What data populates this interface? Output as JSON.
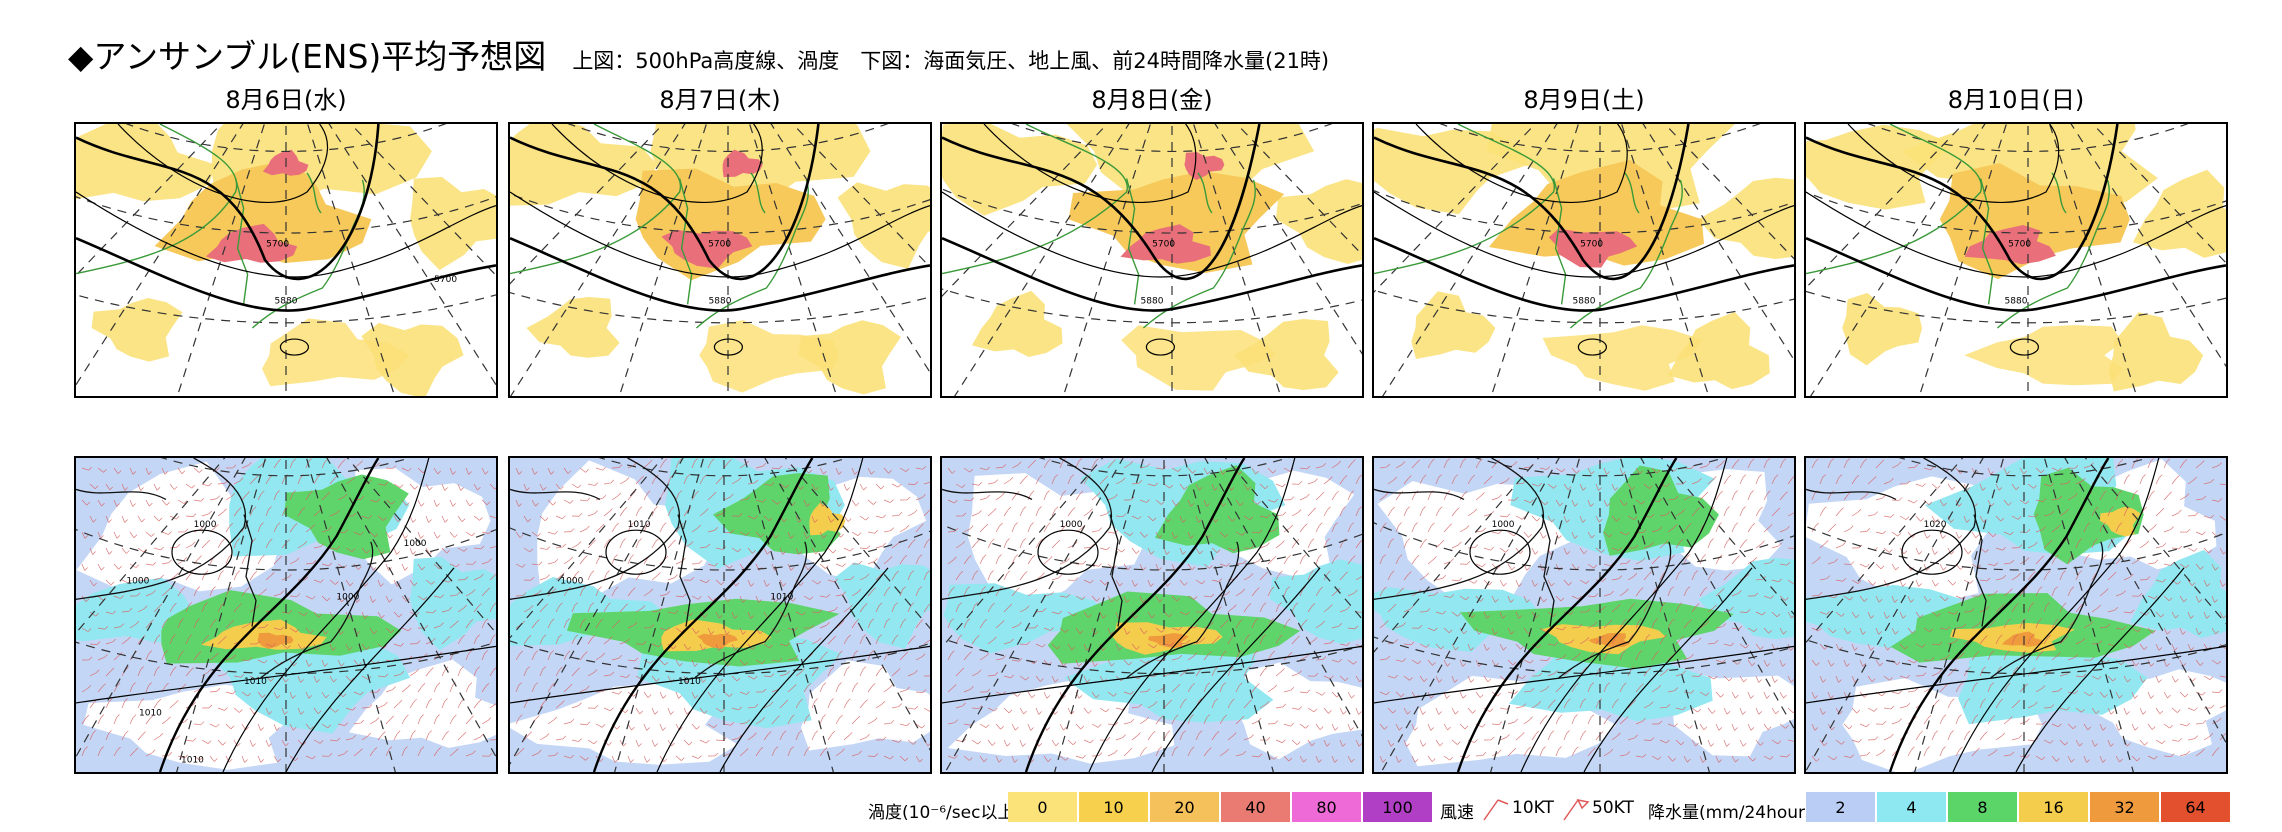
{
  "header": {
    "title": "◆アンサンブル(ENS)平均予想図",
    "subtitle": "上図：500hPa高度線、渦度　下図：海面気圧、地上風、前24時間降水量(21時)"
  },
  "panels": [
    {
      "date": "8月6日(水)",
      "top_contours": [
        "5700",
        "5880",
        "5700"
      ],
      "bottom_contours": [
        "1000",
        "1000",
        "1000",
        "1010",
        "1010",
        "1010",
        "1000"
      ]
    },
    {
      "date": "8月7日(木)",
      "top_contours": [
        "5700",
        "5880"
      ],
      "bottom_contours": [
        "1010",
        "1000",
        "1010",
        "1010"
      ]
    },
    {
      "date": "8月8日(金)",
      "top_contours": [
        "5700",
        "5880"
      ],
      "bottom_contours": [
        "1000"
      ]
    },
    {
      "date": "8月9日(土)",
      "top_contours": [
        "5700",
        "5880"
      ],
      "bottom_contours": [
        "1000"
      ]
    },
    {
      "date": "8月10日(日)",
      "top_contours": [
        "5700",
        "5880"
      ],
      "bottom_contours": [
        "1020"
      ]
    }
  ],
  "legend": {
    "vorticity_label": "渦度(10⁻⁶/sec以上)",
    "vorticity": [
      {
        "label": "0",
        "color": "#fbe37a"
      },
      {
        "label": "10",
        "color": "#f7d04e"
      },
      {
        "label": "20",
        "color": "#f5c15a"
      },
      {
        "label": "40",
        "color": "#ea7b72"
      },
      {
        "label": "80",
        "color": "#ee6ad7"
      },
      {
        "label": "100",
        "color": "#b13fc6"
      }
    ],
    "wind_label": "風速",
    "wind_10": "10KT",
    "wind_50": "50KT",
    "precip_label": "降水量(mm/24hours以上)",
    "precip": [
      {
        "label": "2",
        "color": "#b9cdf5"
      },
      {
        "label": "4",
        "color": "#8ee8f2"
      },
      {
        "label": "8",
        "color": "#5bd468"
      },
      {
        "label": "16",
        "color": "#f4cd4d"
      },
      {
        "label": "32",
        "color": "#ef9b3d"
      },
      {
        "label": "64",
        "color": "#e2502e"
      }
    ]
  }
}
